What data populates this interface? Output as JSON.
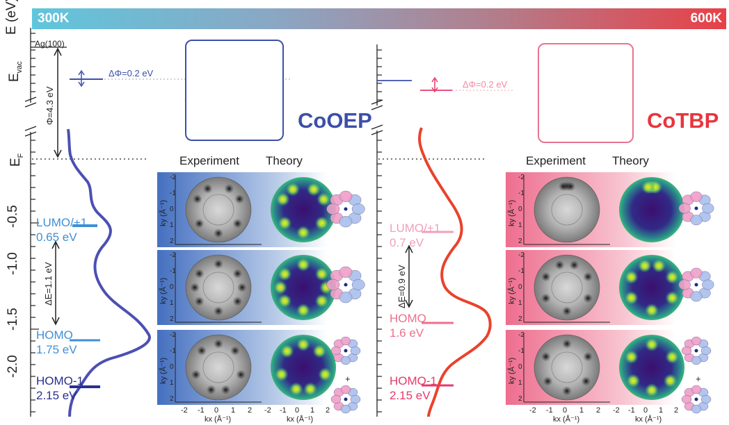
{
  "banner": {
    "left_label": "300K",
    "right_label": "600K"
  },
  "axis": {
    "energy_label": "E (eV)",
    "evac_label": "E",
    "evac_sub": "vac",
    "ef_label": "E",
    "ef_sub": "F",
    "ticks": [
      "-0.5",
      "-1.0",
      "-1.5",
      "-2.0"
    ]
  },
  "left_panel": {
    "substrate": "Ag(100)",
    "work_function": "Φ=4.3 eV",
    "delta_phi": "ΔΦ=0.2 eV",
    "molecule": "CoOEP",
    "delta_e": "ΔE=1.1 eV",
    "levels": [
      {
        "name": "LUMO/+1",
        "energy": "0.65 eV",
        "color": "#3f8fd6"
      },
      {
        "name": "HOMO",
        "energy": "1.75 eV",
        "color": "#3f8fd6"
      },
      {
        "name": "HOMO-1",
        "energy": "2.15 eV",
        "color": "#2a2f8f"
      }
    ]
  },
  "right_panel": {
    "delta_phi": "ΔΦ=0.2 eV",
    "molecule": "CoTBP",
    "delta_e": "ΔE=0.9 eV",
    "levels": [
      {
        "name": "LUMO/+1",
        "energy": "0.7 eV",
        "color": "#f0a0b8"
      },
      {
        "name": "HOMO",
        "energy": "1.6 eV",
        "color": "#ec6f8c"
      },
      {
        "name": "HOMO-1",
        "energy": "2.15 eV",
        "color": "#e8386a"
      }
    ]
  },
  "maps": {
    "experiment": "Experiment",
    "theory": "Theory",
    "ky_label": "k",
    "ky_sub": "y",
    "ky_unit": "(Å⁻¹)",
    "kx_label": "k",
    "kx_sub": "x",
    "kx_unit": "(Å⁻¹)",
    "ticks": [
      "-2",
      "-1",
      "0",
      "1",
      "2"
    ],
    "plus": "+"
  },
  "colors": {
    "left_accent": "#3c4fa8",
    "right_accent": "#e8353e",
    "left_curve": "#4c4fb3",
    "right_curve": "#e9422c",
    "viridis_dark": "#3b0f6f",
    "viridis_bright": "#f4e71e"
  }
}
